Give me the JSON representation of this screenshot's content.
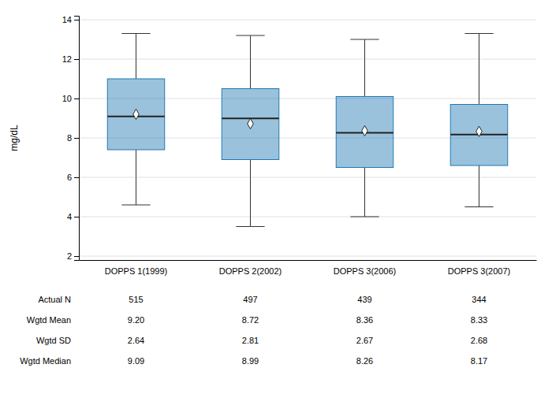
{
  "chart_data": {
    "type": "box",
    "ylabel": "mg/dL",
    "categories": [
      "DOPPS 1(1999)",
      "DOPPS 2(2002)",
      "DOPPS 3(2006)",
      "DOPPS 3(2007)"
    ],
    "values": [
      {
        "whislo": 4.6,
        "q1": 7.4,
        "med": 9.09,
        "q3": 11.0,
        "whishi": 13.3,
        "mean": 9.2
      },
      {
        "whislo": 3.5,
        "q1": 6.9,
        "med": 8.99,
        "q3": 10.5,
        "whishi": 13.2,
        "mean": 8.72
      },
      {
        "whislo": 4.0,
        "q1": 6.5,
        "med": 8.26,
        "q3": 10.1,
        "whishi": 13.0,
        "mean": 8.36
      },
      {
        "whislo": 4.5,
        "q1": 6.6,
        "med": 8.17,
        "q3": 9.7,
        "whishi": 13.3,
        "mean": 8.33
      }
    ],
    "marker": "diamond",
    "ylim": [
      1.8,
      14.2
    ],
    "yticks": [
      2,
      4,
      6,
      8,
      10,
      12,
      14
    ],
    "grid": true,
    "table_rows": [
      {
        "label": "Actual N",
        "values": [
          "515",
          "497",
          "439",
          "344"
        ]
      },
      {
        "label": "Wgtd Mean",
        "values": [
          "9.20",
          "8.72",
          "8.36",
          "8.33"
        ]
      },
      {
        "label": "Wgtd SD",
        "values": [
          "2.64",
          "2.81",
          "2.67",
          "2.68"
        ]
      },
      {
        "label": "Wgtd Median",
        "values": [
          "9.09",
          "8.99",
          "8.26",
          "8.17"
        ]
      }
    ]
  }
}
